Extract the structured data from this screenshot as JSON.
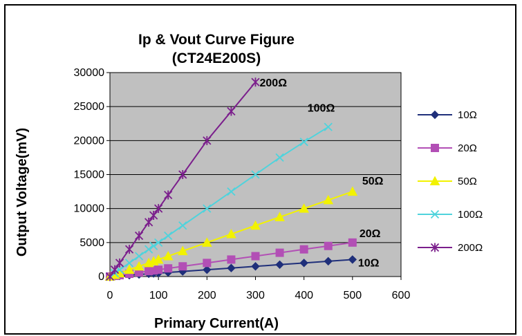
{
  "chart_data": {
    "type": "line",
    "title": "Ip & Vout Curve Figure",
    "subtitle": "(CT24E200S)",
    "xlabel": "Primary  Current(A)",
    "ylabel": "Output Voltage(mV)",
    "xlim": [
      0,
      600
    ],
    "ylim": [
      0,
      30000
    ],
    "x_ticks": [
      "0",
      "100",
      "200",
      "300",
      "400",
      "500",
      "600"
    ],
    "y_ticks": [
      "0",
      "5000",
      "10000",
      "15000",
      "20000",
      "25000",
      "30000"
    ],
    "grid": true,
    "plot_background": "#c0c0c0",
    "legend_position": "right",
    "series": [
      {
        "name": "10Ω",
        "color": "#1f2f7a",
        "marker": "diamond",
        "x": [
          0,
          10,
          20,
          40,
          60,
          80,
          90,
          100,
          120,
          150,
          200,
          250,
          300,
          350,
          400,
          450,
          500
        ],
        "y": [
          0,
          50,
          100,
          200,
          300,
          400,
          450,
          500,
          600,
          750,
          1000,
          1250,
          1500,
          1750,
          2000,
          2250,
          2500
        ]
      },
      {
        "name": "20Ω",
        "color": "#b24fb5",
        "marker": "square",
        "x": [
          0,
          10,
          20,
          40,
          60,
          80,
          90,
          100,
          120,
          150,
          200,
          250,
          300,
          350,
          400,
          450,
          500
        ],
        "y": [
          0,
          100,
          200,
          400,
          600,
          800,
          900,
          1000,
          1200,
          1500,
          2000,
          2500,
          3000,
          3500,
          4000,
          4500,
          5000
        ]
      },
      {
        "name": "50Ω",
        "color": "#f2f200",
        "marker": "triangle",
        "x": [
          0,
          10,
          20,
          40,
          60,
          80,
          90,
          100,
          120,
          150,
          200,
          250,
          300,
          350,
          400,
          450,
          500
        ],
        "y": [
          0,
          250,
          500,
          1000,
          1500,
          2000,
          2250,
          2500,
          3000,
          3750,
          5000,
          6250,
          7500,
          8750,
          10000,
          11250,
          12500
        ]
      },
      {
        "name": "100Ω",
        "color": "#4fd3dc",
        "marker": "x",
        "x": [
          0,
          10,
          20,
          40,
          60,
          80,
          90,
          100,
          120,
          150,
          200,
          250,
          300,
          350,
          400,
          450
        ],
        "y": [
          0,
          500,
          1000,
          2000,
          3000,
          4000,
          4500,
          5000,
          6000,
          7500,
          10000,
          12500,
          15000,
          17500,
          19800,
          22000
        ]
      },
      {
        "name": "200Ω",
        "color": "#7b1f8c",
        "marker": "star",
        "x": [
          0,
          10,
          20,
          40,
          60,
          80,
          90,
          100,
          120,
          150,
          200,
          250,
          300
        ],
        "y": [
          0,
          1000,
          2000,
          4000,
          6000,
          8000,
          9000,
          10000,
          12000,
          15000,
          20000,
          24300,
          28600
        ]
      }
    ],
    "annotations": [
      {
        "text": "200Ω",
        "series": 4
      },
      {
        "text": "100Ω",
        "series": 3
      },
      {
        "text": "50Ω",
        "series": 2
      },
      {
        "text": "20Ω",
        "series": 1
      },
      {
        "text": "10Ω",
        "series": 0
      }
    ]
  }
}
